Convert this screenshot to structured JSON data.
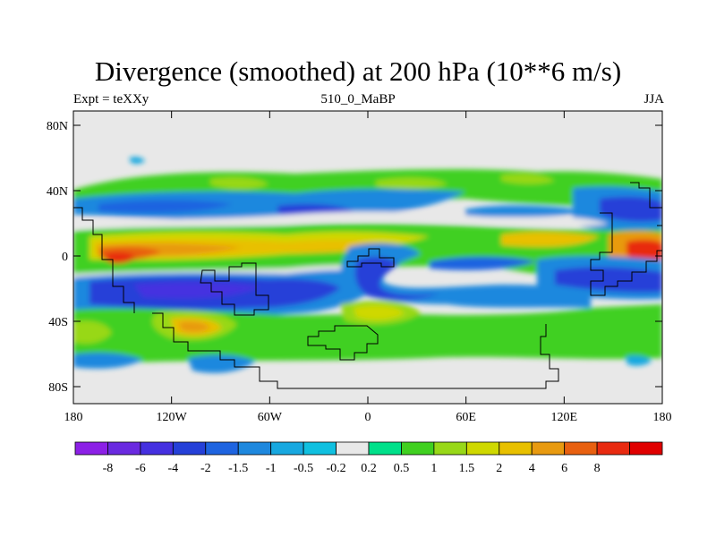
{
  "title": "Divergence (smoothed) at 200 hPa (10**6 m/s)",
  "subtitle_left": "Expt = teXXy",
  "subtitle_center": "510_0_MaBP",
  "subtitle_right": "JJA",
  "lat_labels": [
    "80N",
    "40N",
    "0",
    "40S",
    "80S"
  ],
  "lon_labels": [
    "180",
    "120W",
    "60W",
    "0",
    "60E",
    "120E",
    "180"
  ],
  "colorbar": {
    "colors": [
      "#8c20e6",
      "#6a2ae0",
      "#4530e0",
      "#2540d8",
      "#1e64e0",
      "#1e88de",
      "#18a8e0",
      "#10c0e0",
      "#e8e8e8",
      "#00e08a",
      "#40d020",
      "#98d818",
      "#cfd800",
      "#e8c000",
      "#e89a10",
      "#e86010",
      "#e82a10",
      "#e00000"
    ],
    "labels": [
      "-8",
      "-6",
      "-4",
      "-2",
      "-1.5",
      "-1",
      "-0.5",
      "-0.2",
      "0.2",
      "0.5",
      "1",
      "1.5",
      "2",
      "4",
      "6",
      "8"
    ]
  }
}
